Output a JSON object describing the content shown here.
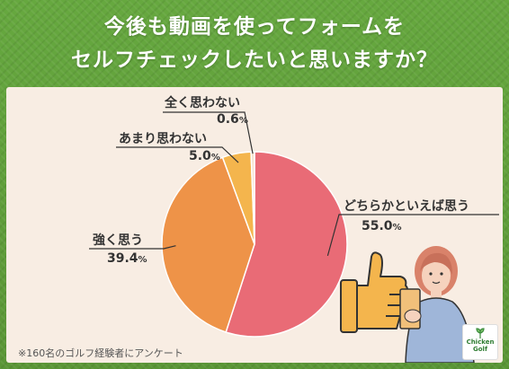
{
  "title": {
    "line1": "今後も動画を使ってフォームを",
    "line2": "セルフチェックしたいと思いますか？"
  },
  "chart_data": {
    "type": "pie",
    "slices": [
      {
        "label": "どちらかといえば思う",
        "value": 55.0,
        "value_text": "55.0",
        "unit": "%",
        "color": "#e96b76"
      },
      {
        "label": "強く思う",
        "value": 39.4,
        "value_text": "39.4",
        "unit": "%",
        "color": "#ee9348"
      },
      {
        "label": "あまり思わない",
        "value": 5.0,
        "value_text": "5.0",
        "unit": "%",
        "color": "#f4b54d"
      },
      {
        "label": "全く思わない",
        "value": 0.6,
        "value_text": "0.6",
        "unit": "%",
        "color": "#f5e3cf"
      }
    ]
  },
  "footnote": "※160名のゴルフ経験者にアンケート",
  "logo": {
    "line1": "Chicken",
    "line2": "Golf"
  },
  "colors": {
    "background": "#5f9e3a",
    "card": "#f8ede3"
  }
}
